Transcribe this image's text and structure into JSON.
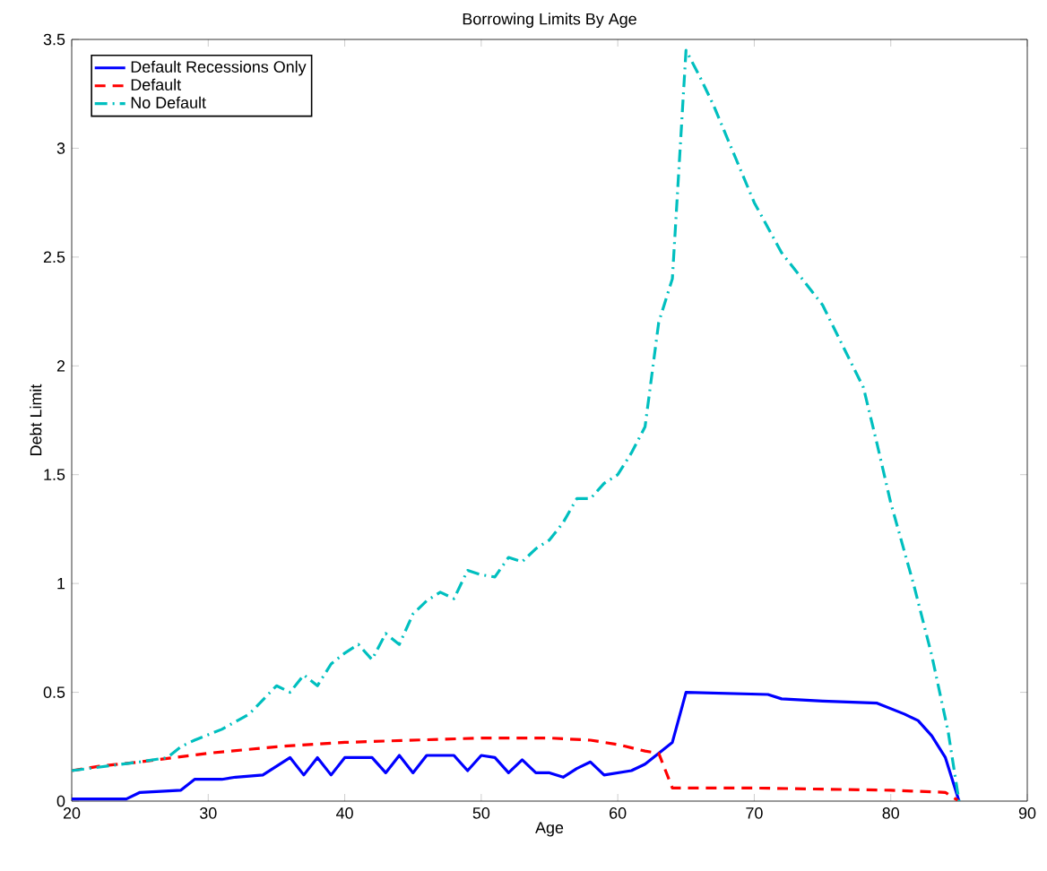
{
  "chart_data": {
    "type": "line",
    "title": "Borrowing Limits By Age",
    "xlabel": "Age",
    "ylabel": "Debt Limit",
    "xlim": [
      20,
      90
    ],
    "xticks": [
      20,
      30,
      40,
      50,
      60,
      70,
      80,
      90
    ],
    "ylim": [
      0,
      3.5
    ],
    "yticks": [
      0,
      0.5,
      1,
      1.5,
      2,
      2.5,
      3,
      3.5
    ],
    "grid": false,
    "legend": "top left",
    "series": [
      {
        "name": "Default Recessions Only",
        "color": "#0000ff",
        "line_style": "solid",
        "x": [
          20,
          24,
          25,
          28,
          29,
          31,
          32,
          34,
          35,
          36,
          37,
          38,
          39,
          40,
          42,
          43,
          44,
          45,
          46,
          48,
          49,
          50,
          51,
          52,
          53,
          54,
          55,
          56,
          57,
          58,
          59,
          60,
          61,
          62,
          63,
          64,
          65,
          71,
          72,
          75,
          79,
          81,
          82,
          83,
          84,
          85
        ],
        "values": [
          0.01,
          0.01,
          0.04,
          0.05,
          0.1,
          0.1,
          0.11,
          0.12,
          0.16,
          0.2,
          0.12,
          0.2,
          0.12,
          0.2,
          0.2,
          0.13,
          0.21,
          0.13,
          0.21,
          0.21,
          0.14,
          0.21,
          0.2,
          0.13,
          0.19,
          0.13,
          0.13,
          0.11,
          0.15,
          0.18,
          0.12,
          0.13,
          0.14,
          0.17,
          0.22,
          0.27,
          0.5,
          0.49,
          0.47,
          0.46,
          0.45,
          0.4,
          0.37,
          0.3,
          0.2,
          0
        ]
      },
      {
        "name": "Default",
        "color": "#ff0000",
        "line_style": "dashed",
        "x": [
          20,
          22,
          25,
          30,
          35,
          40,
          45,
          50,
          55,
          58,
          60,
          62,
          63,
          64,
          70,
          80,
          84,
          85
        ],
        "values": [
          0.14,
          0.16,
          0.18,
          0.22,
          0.25,
          0.27,
          0.28,
          0.29,
          0.29,
          0.28,
          0.26,
          0.23,
          0.22,
          0.06,
          0.06,
          0.05,
          0.04,
          0
        ]
      },
      {
        "name": "No Default",
        "color": "#00bfbf",
        "line_style": "dashdot",
        "x": [
          20,
          25,
          27,
          28,
          29,
          31,
          33,
          35,
          36,
          37,
          38,
          39,
          40,
          41,
          42,
          43,
          44,
          45,
          46,
          47,
          48,
          49,
          50,
          51,
          52,
          53,
          54,
          55,
          56,
          57,
          58,
          59,
          60,
          61,
          62,
          63,
          64,
          65,
          66,
          67,
          68,
          70,
          72,
          75,
          78,
          79,
          80,
          81.7,
          83,
          84.2,
          85
        ],
        "values": [
          0.14,
          0.18,
          0.2,
          0.25,
          0.28,
          0.33,
          0.4,
          0.53,
          0.5,
          0.58,
          0.53,
          0.63,
          0.68,
          0.72,
          0.65,
          0.77,
          0.72,
          0.86,
          0.92,
          0.96,
          0.93,
          1.06,
          1.04,
          1.03,
          1.12,
          1.1,
          1.16,
          1.2,
          1.28,
          1.39,
          1.39,
          1.46,
          1.5,
          1.6,
          1.72,
          2.2,
          2.4,
          3.45,
          3.33,
          3.2,
          3.05,
          2.75,
          2.52,
          2.28,
          1.9,
          1.64,
          1.37,
          0.99,
          0.67,
          0.32,
          0
        ]
      }
    ]
  }
}
